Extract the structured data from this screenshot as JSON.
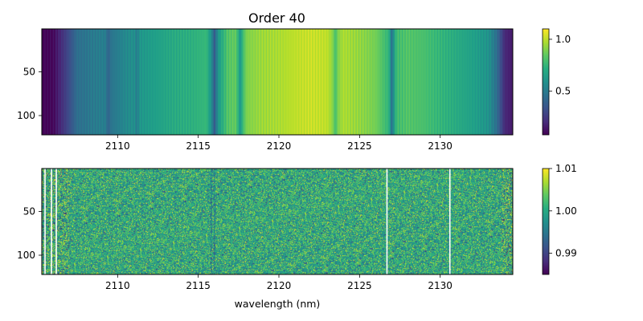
{
  "chart_data": [
    {
      "type": "heatmap",
      "title": "Order 40",
      "xlabel": "",
      "ylabel": "",
      "xlim": [
        2105.3,
        2134.5
      ],
      "ylim": [
        122,
        1
      ],
      "x_ticks": [
        2110,
        2115,
        2120,
        2125,
        2130
      ],
      "y_ticks": [
        50,
        100
      ],
      "colormap": "viridis",
      "colorbar": {
        "range": [
          0.08,
          1.1
        ],
        "ticks": [
          0.5,
          1.0
        ],
        "tick_labels": [
          "0.5",
          "1.0"
        ]
      },
      "profile": {
        "x": [
          2105.3,
          2106.0,
          2107.0,
          2107.5,
          2108.5,
          2109.3,
          2109.5,
          2110.5,
          2111.2,
          2111.5,
          2112.5,
          2113.5,
          2114.5,
          2115.5,
          2115.8,
          2116.0,
          2116.3,
          2116.8,
          2117.3,
          2117.6,
          2118.0,
          2119.0,
          2120.0,
          2121.0,
          2122.0,
          2123.0,
          2123.5,
          2124.0,
          2125.0,
          2126.0,
          2126.8,
          2127.0,
          2127.3,
          2128.0,
          2129.0,
          2130.0,
          2131.0,
          2132.0,
          2133.0,
          2133.5,
          2134.0,
          2134.5
        ],
        "values": [
          0.08,
          0.1,
          0.32,
          0.45,
          0.5,
          0.52,
          0.47,
          0.56,
          0.6,
          0.62,
          0.66,
          0.7,
          0.72,
          0.76,
          0.6,
          0.45,
          0.65,
          0.82,
          0.85,
          0.7,
          0.9,
          0.95,
          0.97,
          1.0,
          1.02,
          1.0,
          0.88,
          0.97,
          0.93,
          0.88,
          0.75,
          0.55,
          0.78,
          0.82,
          0.8,
          0.75,
          0.7,
          0.66,
          0.6,
          0.45,
          0.2,
          0.15
        ]
      },
      "absorption_lines": [
        2109.4,
        2111.2,
        2116.0,
        2117.6,
        2123.5,
        2127.0
      ]
    },
    {
      "type": "heatmap",
      "title": "",
      "xlabel": "wavelength (nm)",
      "ylabel": "",
      "xlim": [
        2105.3,
        2134.5
      ],
      "ylim": [
        122,
        1
      ],
      "x_ticks": [
        2110,
        2115,
        2120,
        2125,
        2130
      ],
      "y_ticks": [
        50,
        100
      ],
      "colormap": "viridis",
      "colorbar": {
        "range": [
          0.985,
          1.01
        ],
        "ticks": [
          0.99,
          1.0,
          1.01
        ],
        "tick_labels": [
          "0.99",
          "1.00",
          "1.01"
        ]
      },
      "mean_value": 1.0,
      "noise_sigma": 0.004,
      "masked_columns_x": [
        2105.5,
        2105.9,
        2106.2,
        2126.7,
        2130.6
      ],
      "faint_features_x": [
        2115.8,
        2116.0
      ]
    }
  ]
}
